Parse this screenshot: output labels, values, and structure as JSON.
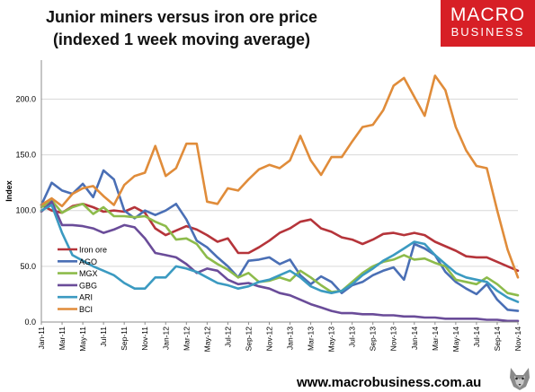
{
  "header": {
    "title_line1": "Junior miners versus iron ore price",
    "title_line2": "(indexed 1 week moving average)"
  },
  "logo": {
    "text_top": "MACRO",
    "text_bottom": "BUSINESS",
    "background": "#d71f26"
  },
  "footer": {
    "url": "www.macrobusiness.com.au",
    "mascot_icon": "wolf-head-icon"
  },
  "chart_data": {
    "type": "line",
    "ylabel": "Index",
    "xlabel": "",
    "ylim": [
      0,
      235
    ],
    "yticks": [
      0,
      50,
      100,
      150,
      200
    ],
    "ytick_labels": [
      "0.0",
      "50.0",
      "100.0",
      "150.0",
      "200.0"
    ],
    "x": [
      "Jan-11",
      "Feb-11",
      "Mar-11",
      "Apr-11",
      "May-11",
      "Jun-11",
      "Jul-11",
      "Aug-11",
      "Sep-11",
      "Oct-11",
      "Nov-11",
      "Dec-11",
      "Jan-12",
      "Feb-12",
      "Mar-12",
      "Apr-12",
      "May-12",
      "Jun-12",
      "Jul-12",
      "Aug-12",
      "Sep-12",
      "Oct-12",
      "Nov-12",
      "Dec-12",
      "Jan-13",
      "Feb-13",
      "Mar-13",
      "Apr-13",
      "May-13",
      "Jun-13",
      "Jul-13",
      "Aug-13",
      "Sep-13",
      "Oct-13",
      "Nov-13",
      "Dec-13",
      "Jan-14",
      "Feb-14",
      "Mar-14",
      "Apr-14",
      "May-14",
      "Jun-14",
      "Jul-14",
      "Aug-14",
      "Sep-14",
      "Oct-14",
      "Nov-14"
    ],
    "xtick_labels": [
      "Jan-11",
      "Mar-11",
      "May-11",
      "Jul-11",
      "Sep-11",
      "Nov-11",
      "Jan-12",
      "Mar-12",
      "May-12",
      "Jul-12",
      "Sep-12",
      "Nov-12",
      "Jan-13",
      "Mar-13",
      "May-13",
      "Jul-13",
      "Sep-13",
      "Nov-13",
      "Jan-14",
      "Mar-14",
      "May-14",
      "Jul-14",
      "Sep-14",
      "Nov-14"
    ],
    "grid": true,
    "legend_position": "left-middle",
    "series": [
      {
        "name": "Iron ore",
        "color": "#b5343a",
        "values": [
          105,
          100,
          98,
          104,
          106,
          103,
          99,
          100,
          99,
          103,
          98,
          84,
          78,
          82,
          86,
          83,
          78,
          72,
          75,
          62,
          62,
          67,
          73,
          80,
          84,
          90,
          92,
          84,
          81,
          76,
          74,
          70,
          74,
          79,
          80,
          78,
          80,
          78,
          72,
          68,
          64,
          59,
          58,
          58,
          54,
          50,
          46
        ]
      },
      {
        "name": "AGO",
        "color": "#4a6fb5",
        "values": [
          105,
          125,
          118,
          115,
          124,
          112,
          136,
          128,
          100,
          93,
          100,
          96,
          100,
          106,
          92,
          73,
          67,
          58,
          50,
          40,
          55,
          56,
          58,
          52,
          56,
          42,
          34,
          41,
          36,
          26,
          33,
          36,
          42,
          46,
          49,
          38,
          70,
          66,
          60,
          45,
          36,
          30,
          25,
          34,
          20,
          11,
          10
        ]
      },
      {
        "name": "MGX",
        "color": "#8dbb4b",
        "values": [
          103,
          109,
          98,
          103,
          106,
          97,
          103,
          95,
          95,
          94,
          95,
          90,
          86,
          74,
          75,
          70,
          58,
          52,
          47,
          40,
          44,
          36,
          37,
          40,
          37,
          46,
          40,
          33,
          27,
          28,
          36,
          44,
          50,
          54,
          56,
          60,
          56,
          57,
          53,
          50,
          38,
          36,
          34,
          40,
          34,
          26,
          24
        ]
      },
      {
        "name": "GBG",
        "color": "#6a4c99",
        "values": [
          99,
          108,
          87,
          87,
          86,
          84,
          80,
          83,
          87,
          85,
          75,
          62,
          60,
          58,
          52,
          44,
          48,
          46,
          38,
          34,
          35,
          32,
          30,
          26,
          24,
          20,
          16,
          13,
          10,
          8,
          8,
          7,
          7,
          6,
          6,
          5,
          5,
          4,
          4,
          3,
          3,
          3,
          3,
          2,
          2,
          1,
          1
        ]
      },
      {
        "name": "ARI",
        "color": "#3b9ac1",
        "values": [
          100,
          105,
          80,
          60,
          55,
          50,
          46,
          42,
          35,
          30,
          30,
          40,
          40,
          50,
          48,
          45,
          40,
          35,
          33,
          30,
          32,
          36,
          38,
          42,
          46,
          40,
          32,
          28,
          26,
          28,
          34,
          42,
          48,
          55,
          60,
          66,
          72,
          70,
          60,
          52,
          44,
          40,
          38,
          36,
          28,
          22,
          18
        ]
      },
      {
        "name": "BCI",
        "color": "#e08c3a",
        "values": [
          105,
          111,
          104,
          115,
          120,
          122,
          113,
          105,
          123,
          131,
          134,
          158,
          131,
          138,
          160,
          160,
          108,
          106,
          120,
          118,
          128,
          137,
          141,
          138,
          145,
          167,
          145,
          132,
          148,
          148,
          162,
          175,
          177,
          190,
          212,
          219,
          202,
          185,
          221,
          208,
          175,
          154,
          140,
          138,
          100,
          65,
          40
        ]
      }
    ]
  }
}
